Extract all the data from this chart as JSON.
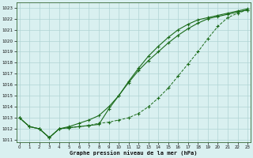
{
  "x": [
    0,
    1,
    2,
    3,
    4,
    5,
    6,
    7,
    8,
    9,
    10,
    11,
    12,
    13,
    14,
    15,
    16,
    17,
    18,
    19,
    20,
    21,
    22,
    23
  ],
  "series1": [
    1013.0,
    1012.2,
    1012.0,
    1011.2,
    1012.0,
    1012.1,
    1012.2,
    1012.3,
    1012.5,
    1012.6,
    1012.8,
    1013.0,
    1013.4,
    1014.0,
    1014.8,
    1015.7,
    1016.8,
    1017.9,
    1019.0,
    1020.2,
    1021.3,
    1022.1,
    1022.5,
    1022.8
  ],
  "series2": [
    1013.0,
    1012.2,
    1012.0,
    1011.2,
    1012.0,
    1012.2,
    1012.5,
    1012.8,
    1013.2,
    1014.0,
    1015.0,
    1016.2,
    1017.3,
    1018.2,
    1019.0,
    1019.8,
    1020.5,
    1021.1,
    1021.6,
    1022.0,
    1022.2,
    1022.4,
    1022.6,
    1022.8
  ],
  "series3": [
    1013.0,
    1012.2,
    1012.0,
    1011.2,
    1012.0,
    1012.1,
    1012.2,
    1012.3,
    1012.4,
    1013.8,
    1015.0,
    1016.3,
    1017.5,
    1018.6,
    1019.5,
    1020.3,
    1021.0,
    1021.5,
    1021.9,
    1022.1,
    1022.3,
    1022.5,
    1022.7,
    1022.9
  ],
  "line_color": "#1a6b1a",
  "bg_color": "#d9f0f0",
  "grid_color": "#b0d4d4",
  "title": "Graphe pression niveau de la mer (hPa)",
  "ylim": [
    1010.8,
    1023.5
  ],
  "xlim": [
    -0.3,
    23.3
  ],
  "yticks": [
    1011,
    1012,
    1013,
    1014,
    1015,
    1016,
    1017,
    1018,
    1019,
    1020,
    1021,
    1022,
    1023
  ],
  "xticks": [
    0,
    1,
    2,
    3,
    4,
    5,
    6,
    7,
    8,
    9,
    10,
    11,
    12,
    13,
    14,
    15,
    16,
    17,
    18,
    19,
    20,
    21,
    22,
    23
  ]
}
